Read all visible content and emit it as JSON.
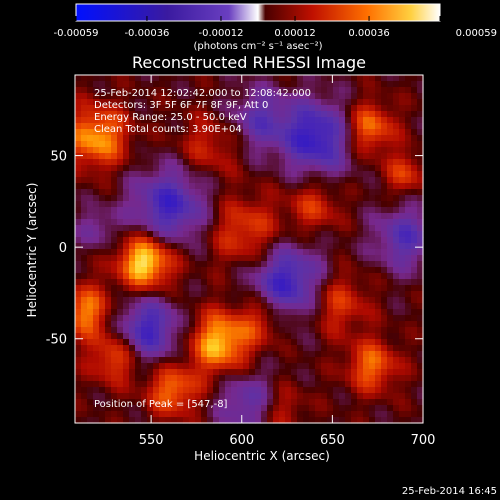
{
  "chart_data": {
    "type": "heatmap",
    "title": "Reconstructed RHESSI Image",
    "xlabel": "Heliocentric X (arcsec)",
    "ylabel": "Heliocentric Y (arcsec)",
    "xlim": [
      508,
      700
    ],
    "ylim": [
      -96,
      94
    ],
    "x_ticks": [
      550,
      600,
      650,
      700
    ],
    "y_ticks": [
      50,
      0,
      -50
    ],
    "colorbar": {
      "ticks": [
        "-0.00059",
        "-0.00036",
        "-0.00012",
        "0.00012",
        "0.00036",
        "0.00059"
      ],
      "unit_label": "(photons cm⁻² s⁻¹ asec⁻²)",
      "range": [
        -0.00059,
        0.00059
      ]
    },
    "annotations": [
      "25-Feb-2014 12:02:42.000 to 12:08:42.000",
      "Detectors: 3F 5F 6F 7F 8F 9F, Att 0",
      "Energy Range: 25.0 - 50.0 keV",
      "Clean    Total counts: 3.90E+04"
    ],
    "peak_label": "Position of Peak = [547,-8]",
    "peak": [
      547,
      -8
    ],
    "components": [
      {
        "x": 547,
        "y": -8,
        "amp": 0.00059,
        "sigma": 11
      },
      {
        "x": 520,
        "y": 60,
        "amp": 0.00045,
        "sigma": 12
      },
      {
        "x": 514,
        "y": -35,
        "amp": 0.0004,
        "sigma": 10
      },
      {
        "x": 530,
        "y": -60,
        "amp": 0.00035,
        "sigma": 10
      },
      {
        "x": 588,
        "y": -52,
        "amp": 0.0005,
        "sigma": 12
      },
      {
        "x": 562,
        "y": -78,
        "amp": 0.00038,
        "sigma": 10
      },
      {
        "x": 602,
        "y": 8,
        "amp": 0.0003,
        "sigma": 14
      },
      {
        "x": 612,
        "y": -38,
        "amp": 0.00028,
        "sigma": 10
      },
      {
        "x": 670,
        "y": 65,
        "amp": 0.0004,
        "sigma": 10
      },
      {
        "x": 690,
        "y": 40,
        "amp": 0.00026,
        "sigma": 8
      },
      {
        "x": 652,
        "y": -30,
        "amp": 0.0003,
        "sigma": 12
      },
      {
        "x": 672,
        "y": -65,
        "amp": 0.00036,
        "sigma": 10
      },
      {
        "x": 620,
        "y": -88,
        "amp": 0.00025,
        "sigma": 10
      },
      {
        "x": 582,
        "y": 55,
        "amp": 0.00022,
        "sigma": 12
      },
      {
        "x": 640,
        "y": 22,
        "amp": 0.00025,
        "sigma": 10
      },
      {
        "x": 560,
        "y": 22,
        "amp": -0.00045,
        "sigma": 15
      },
      {
        "x": 610,
        "y": 70,
        "amp": -0.0003,
        "sigma": 12
      },
      {
        "x": 642,
        "y": 60,
        "amp": -0.0005,
        "sigma": 14
      },
      {
        "x": 548,
        "y": -45,
        "amp": -0.00045,
        "sigma": 13
      },
      {
        "x": 625,
        "y": -20,
        "amp": -0.0005,
        "sigma": 15
      },
      {
        "x": 690,
        "y": 5,
        "amp": -0.00035,
        "sigma": 12
      },
      {
        "x": 605,
        "y": -85,
        "amp": -0.00035,
        "sigma": 12
      },
      {
        "x": 520,
        "y": 10,
        "amp": -0.0002,
        "sigma": 8
      }
    ]
  },
  "footer_timestamp": "25-Feb-2014 16:45"
}
